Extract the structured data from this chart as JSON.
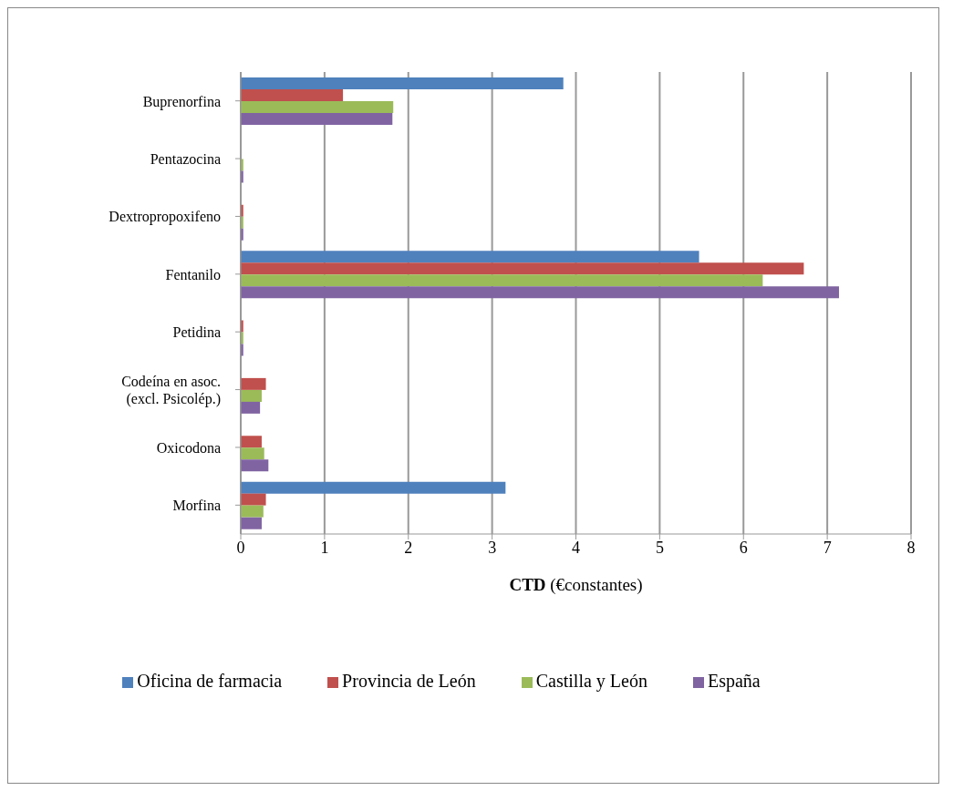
{
  "chart_data": {
    "type": "bar",
    "orientation": "horizontal",
    "xlabel": "CTD (€constantes)",
    "categories": [
      "Buprenorfina",
      "Pentazocina",
      "Dextropropoxifeno",
      "Fentanilo",
      "Petidina",
      "Codeína en asoc. (excl. Psicolép.)",
      "Oxicodona",
      "Morfina"
    ],
    "series": [
      {
        "name": "Oficina de farmacia",
        "color": "#4f81bd",
        "values": [
          3.85,
          0,
          0,
          5.47,
          0,
          0,
          0,
          3.16
        ]
      },
      {
        "name": "Provincia de León",
        "color": "#c0504d",
        "values": [
          1.22,
          0,
          0.03,
          6.72,
          0.03,
          0.3,
          0.25,
          0.3
        ]
      },
      {
        "name": "Castilla y León",
        "color": "#9bbb59",
        "values": [
          1.82,
          0.03,
          0.03,
          6.23,
          0.03,
          0.25,
          0.28,
          0.27
        ]
      },
      {
        "name": "España",
        "color": "#8064a2",
        "values": [
          1.81,
          0.03,
          0.03,
          7.14,
          0.03,
          0.23,
          0.33,
          0.25
        ]
      }
    ],
    "xlim": [
      0,
      8
    ],
    "xticks": [
      0,
      1,
      2,
      3,
      4,
      5,
      6,
      7,
      8
    ],
    "grid": "x",
    "legend": "bottom"
  }
}
